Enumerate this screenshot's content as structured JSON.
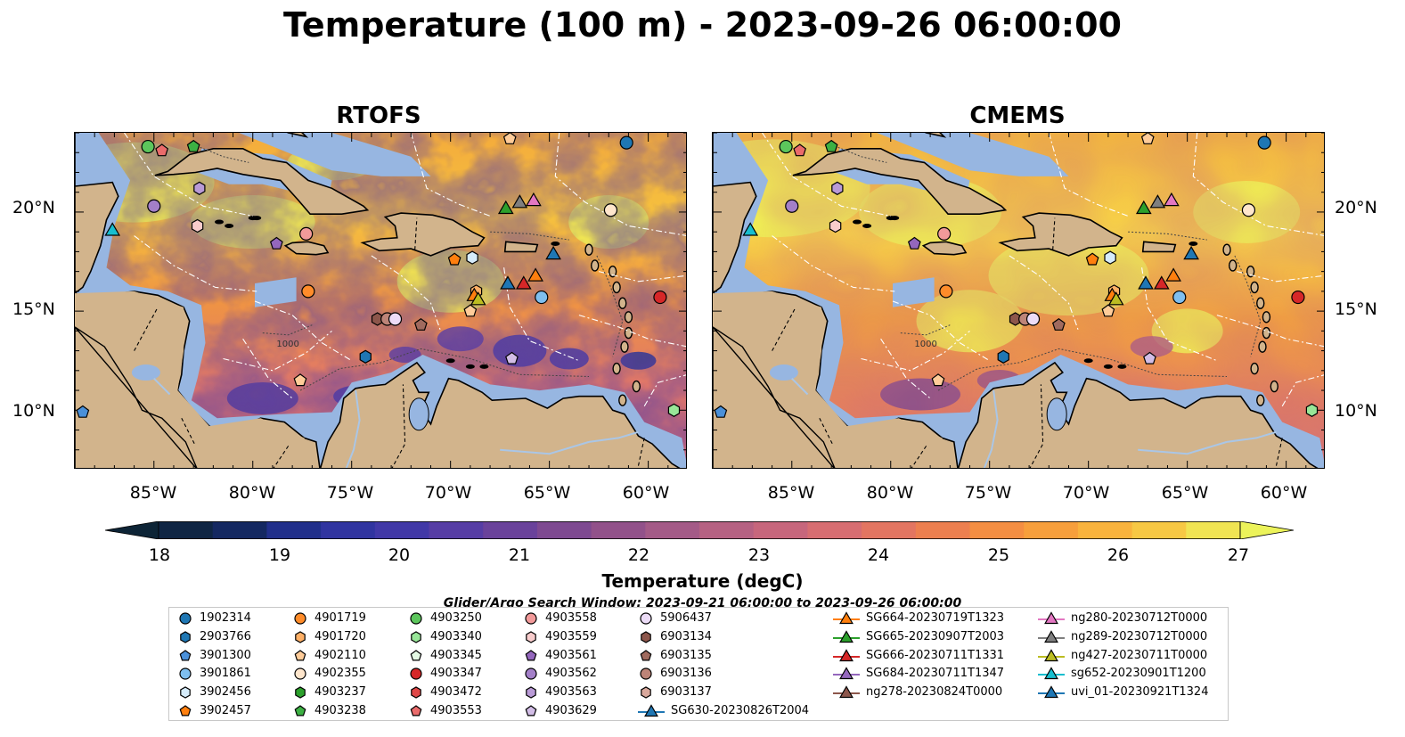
{
  "title": "Temperature (100 m) - 2023-09-26 06:00:00",
  "panels": [
    {
      "title": "RTOFS"
    },
    {
      "title": "CMEMS"
    }
  ],
  "lat_labels": [
    "20°N",
    "15°N",
    "10°N"
  ],
  "lon_labels": [
    "85°W",
    "80°W",
    "75°W",
    "70°W",
    "65°W",
    "60°W"
  ],
  "colorbar": {
    "label": "Temperature (degC)",
    "ticks": [
      "18",
      "19",
      "20",
      "21",
      "22",
      "23",
      "24",
      "25",
      "26",
      "27"
    ],
    "min": 17.5,
    "max": 27.5,
    "extend": "both"
  },
  "search_window": "Glider/Argo Search Window: 2023-09-21 06:00:00 to 2023-09-26 06:00:00",
  "contour_label": "1000",
  "colors": {
    "land": "#d2b48c",
    "shelf": "#97b6e1",
    "river": "#aac6e6"
  },
  "legend": {
    "argo": [
      {
        "id": "1902314",
        "marker": "circle",
        "color": "#1f77b4"
      },
      {
        "id": "2903766",
        "marker": "hexagon",
        "color": "#1f77b4"
      },
      {
        "id": "3901300",
        "marker": "pentagon",
        "color": "#4a90d9"
      },
      {
        "id": "3901861",
        "marker": "circle",
        "color": "#7fbfef"
      },
      {
        "id": "3902456",
        "marker": "hexagon",
        "color": "#d6ecfb"
      },
      {
        "id": "3902457",
        "marker": "pentagon",
        "color": "#ff7f0e"
      },
      {
        "id": "4901719",
        "marker": "circle",
        "color": "#ff8c2a"
      },
      {
        "id": "4901720",
        "marker": "hexagon",
        "color": "#ffb066"
      },
      {
        "id": "4902110",
        "marker": "pentagon",
        "color": "#ffcc99"
      },
      {
        "id": "4902355",
        "marker": "circle",
        "color": "#ffe6cc"
      },
      {
        "id": "4903237",
        "marker": "hexagon",
        "color": "#2ca02c"
      },
      {
        "id": "4903238",
        "marker": "pentagon",
        "color": "#3cb043"
      },
      {
        "id": "4903250",
        "marker": "circle",
        "color": "#5cc65c"
      },
      {
        "id": "4903340",
        "marker": "hexagon",
        "color": "#98e698"
      },
      {
        "id": "4903345",
        "marker": "pentagon",
        "color": "#e4f9e4"
      },
      {
        "id": "4903347",
        "marker": "circle",
        "color": "#d62728"
      },
      {
        "id": "4903472",
        "marker": "hexagon",
        "color": "#e04848"
      },
      {
        "id": "4903553",
        "marker": "pentagon",
        "color": "#ea6b6b"
      },
      {
        "id": "4903558",
        "marker": "circle",
        "color": "#f29a9a"
      },
      {
        "id": "4903559",
        "marker": "hexagon",
        "color": "#f8cccc"
      },
      {
        "id": "4903561",
        "marker": "pentagon",
        "color": "#9467bd"
      },
      {
        "id": "4903562",
        "marker": "circle",
        "color": "#a37fc8"
      },
      {
        "id": "4903563",
        "marker": "hexagon",
        "color": "#b99ad6"
      },
      {
        "id": "4903629",
        "marker": "pentagon",
        "color": "#d2bde6"
      },
      {
        "id": "5906437",
        "marker": "circle",
        "color": "#ecdcf7"
      },
      {
        "id": "6903134",
        "marker": "hexagon",
        "color": "#8c564b"
      },
      {
        "id": "6903135",
        "marker": "pentagon",
        "color": "#a06a5e"
      },
      {
        "id": "6903136",
        "marker": "circle",
        "color": "#bd8478"
      },
      {
        "id": "6903137",
        "marker": "hexagon",
        "color": "#d9a89c"
      }
    ],
    "gliders": [
      {
        "id": "SG630-20230826T2004",
        "color": "#1f77b4"
      },
      {
        "id": "SG664-20230719T1323",
        "color": "#ff7f0e"
      },
      {
        "id": "SG665-20230907T2003",
        "color": "#2ca02c"
      },
      {
        "id": "SG666-20230711T1331",
        "color": "#d62728"
      },
      {
        "id": "SG684-20230711T1347",
        "color": "#9467bd"
      },
      {
        "id": "ng278-20230824T0000",
        "color": "#8c564b"
      },
      {
        "id": "ng280-20230712T0000",
        "color": "#e377c2"
      },
      {
        "id": "ng289-20230712T0000",
        "color": "#7f7f7f"
      },
      {
        "id": "ng427-20230711T0000",
        "color": "#bcbd22"
      },
      {
        "id": "sg652-20230901T1200",
        "color": "#17becf"
      },
      {
        "id": "uvi_01-20230921T1324",
        "color": "#1f77b4"
      }
    ]
  },
  "platforms": [
    {
      "ref": "1902314",
      "lon": -61.1,
      "lat": 23.5
    },
    {
      "ref": "4903250",
      "lon": -85.3,
      "lat": 23.3
    },
    {
      "ref": "4903553",
      "lon": -84.6,
      "lat": 23.1
    },
    {
      "ref": "4903238",
      "lon": -83.0,
      "lat": 23.3
    },
    {
      "ref": "4902110",
      "lon": -67.0,
      "lat": 23.7
    },
    {
      "ref": "4903562",
      "lon": -85.0,
      "lat": 20.3
    },
    {
      "ref": "4903563",
      "lon": -82.7,
      "lat": 21.2
    },
    {
      "ref": "4903559",
      "lon": -82.8,
      "lat": 19.3
    },
    {
      "ref": "4903561",
      "lon": -78.8,
      "lat": 18.4
    },
    {
      "ref": "4903558",
      "lon": -77.3,
      "lat": 18.9
    },
    {
      "ref": "4902355",
      "lon": -61.9,
      "lat": 20.1
    },
    {
      "ref": "4901719",
      "lon": -77.2,
      "lat": 16.0
    },
    {
      "ref": "3902457",
      "lon": -69.8,
      "lat": 17.6
    },
    {
      "ref": "3902456",
      "lon": -68.9,
      "lat": 17.7
    },
    {
      "ref": "4903347",
      "lon": -59.4,
      "lat": 15.7
    },
    {
      "ref": "3901861",
      "lon": -65.4,
      "lat": 15.7
    },
    {
      "ref": "4901720",
      "lon": -68.7,
      "lat": 16.0
    },
    {
      "ref": "4902110",
      "lon": -69.0,
      "lat": 15.0
    },
    {
      "ref": "6903134",
      "lon": -73.7,
      "lat": 14.6
    },
    {
      "ref": "6903136",
      "lon": -73.2,
      "lat": 14.6
    },
    {
      "ref": "5906437",
      "lon": -72.8,
      "lat": 14.6
    },
    {
      "ref": "6903135",
      "lon": -71.5,
      "lat": 14.3
    },
    {
      "ref": "2903766",
      "lon": -74.3,
      "lat": 12.7
    },
    {
      "ref": "4903629",
      "lon": -66.9,
      "lat": 12.6
    },
    {
      "ref": "4902110",
      "lon": -77.6,
      "lat": 11.5
    },
    {
      "ref": "3901300",
      "lon": -88.6,
      "lat": 9.9
    },
    {
      "ref": "4903340",
      "lon": -58.7,
      "lat": 10.0
    }
  ],
  "glider_positions": [
    {
      "ref": "sg652-20230901T1200",
      "lon": -87.1,
      "lat": 19.1
    },
    {
      "ref": "SG665-20230907T2003",
      "lon": -67.2,
      "lat": 20.2
    },
    {
      "ref": "ng289-20230712T0000",
      "lon": -66.5,
      "lat": 20.5
    },
    {
      "ref": "ng280-20230712T0000",
      "lon": -65.8,
      "lat": 20.6
    },
    {
      "ref": "SG630-20230826T2004",
      "lon": -64.8,
      "lat": 17.9
    },
    {
      "ref": "SG630-20230826T2004",
      "lon": -67.1,
      "lat": 16.4
    },
    {
      "ref": "SG666-20230711T1331",
      "lon": -66.3,
      "lat": 16.4
    },
    {
      "ref": "SG664-20230719T1323",
      "lon": -65.7,
      "lat": 16.8
    },
    {
      "ref": "SG664-20230719T1323",
      "lon": -68.8,
      "lat": 15.8
    },
    {
      "ref": "ng427-20230711T0000",
      "lon": -68.6,
      "lat": 15.6
    }
  ],
  "lon_range": [
    -89,
    -58
  ],
  "lat_range": [
    7,
    24
  ]
}
